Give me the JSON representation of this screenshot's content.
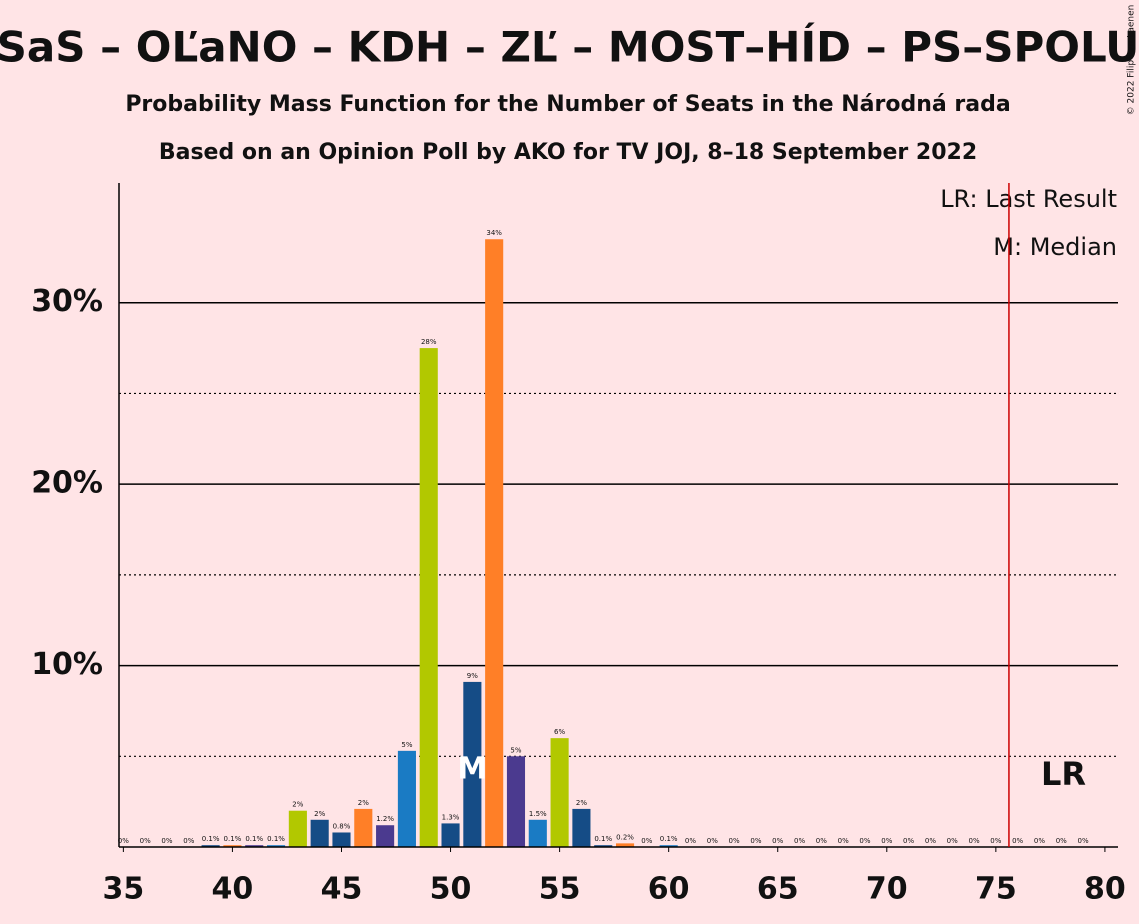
{
  "chart_data": {
    "type": "bar",
    "title": "SaS – OĽaNO – KDH – ZĽ – MOST–HÍD – PS–SPOLU",
    "subtitle": "Probability Mass Function for the Number of Seats in the Národná rada",
    "subtitle2": "Based on an Opinion Poll by AKO for TV JOJ, 8–18 September 2022",
    "copyright": "© 2022 Filip van Laenen",
    "x": [
      35,
      36,
      37,
      38,
      39,
      40,
      41,
      42,
      43,
      44,
      45,
      46,
      47,
      48,
      49,
      50,
      51,
      52,
      53,
      54,
      55,
      56,
      57,
      58,
      59,
      60,
      61,
      62,
      63,
      64,
      65,
      66,
      67,
      68,
      69,
      70,
      71,
      72,
      73,
      74,
      75,
      76,
      77,
      78,
      79
    ],
    "values": [
      0,
      0,
      0,
      0,
      0.1,
      0.1,
      0.1,
      0.1,
      2,
      1.5,
      0.8,
      2.1,
      1.2,
      5.3,
      27.5,
      1.3,
      9.1,
      33.5,
      5.0,
      1.5,
      6.0,
      2.1,
      0.1,
      0.2,
      0,
      0.1,
      0,
      0,
      0,
      0,
      0,
      0,
      0,
      0,
      0,
      0,
      0,
      0,
      0,
      0,
      0,
      0,
      0,
      0,
      0
    ],
    "value_labels": [
      "0%",
      "0%",
      "0%",
      "0%",
      "0.1%",
      "0.1%",
      "0.1%",
      "0.1%",
      "2%",
      "2%",
      "0.8%",
      "2%",
      "1.2%",
      "5%",
      "28%",
      "1.3%",
      "9%",
      "34%",
      "5%",
      "1.5%",
      "6%",
      "2%",
      "0.1%",
      "0.2%",
      "0%",
      "0.1%",
      "0%",
      "0%",
      "0%",
      "0%",
      "0%",
      "0%",
      "0%",
      "0%",
      "0%",
      "0%",
      "0%",
      "0%",
      "0%",
      "0%",
      "0%",
      "0%",
      "0%",
      "0%",
      "0%"
    ],
    "colors": [
      "#4b3a8f",
      "#1a7bc4",
      "#b2c800",
      "#154c86",
      "#154c86",
      "#ff7f27",
      "#4b3a8f",
      "#1a7bc4",
      "#b2c800",
      "#154c86",
      "#154c86",
      "#ff7f27",
      "#4b3a8f",
      "#1a7bc4",
      "#b2c800",
      "#154c86",
      "#154c86",
      "#ff7f27",
      "#4b3a8f",
      "#1a7bc4",
      "#b2c800",
      "#154c86",
      "#154c86",
      "#ff7f27",
      "#4b3a8f",
      "#1a7bc4",
      "#b2c800",
      "#154c86",
      "#154c86",
      "#ff7f27",
      "#4b3a8f",
      "#1a7bc4",
      "#b2c800",
      "#154c86",
      "#154c86",
      "#ff7f27",
      "#4b3a8f",
      "#1a7bc4",
      "#b2c800",
      "#154c86",
      "#154c86",
      "#ff7f27",
      "#4b3a8f",
      "#1a7bc4",
      "#b2c800"
    ],
    "xlim": [
      34.8,
      80.6
    ],
    "xticks": [
      35,
      40,
      45,
      50,
      55,
      60,
      65,
      70,
      75,
      80
    ],
    "ylim": [
      0,
      36.6
    ],
    "yticks": [
      {
        "value": 10,
        "label": "10%"
      },
      {
        "value": 20,
        "label": "20%"
      },
      {
        "value": 30,
        "label": "30%"
      }
    ],
    "minor_yticks": [
      5,
      15,
      25
    ],
    "grid": true,
    "last_result": 75.6,
    "last_result_label": "LR",
    "median": 51,
    "median_label": "M",
    "legend": [
      "LR: Last Result",
      "M: Median"
    ]
  }
}
